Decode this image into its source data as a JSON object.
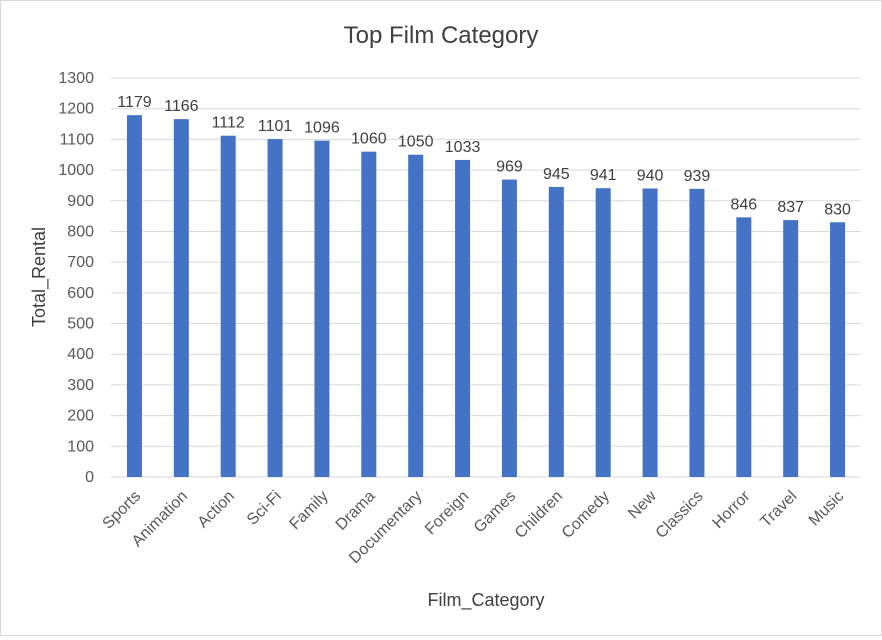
{
  "chart_data": {
    "type": "bar",
    "title": "Top Film Category",
    "xlabel": "Film_Category",
    "ylabel": "Total_Rental",
    "ylim": [
      0,
      1300
    ],
    "ytick_step": 100,
    "grid": true,
    "legend": "none",
    "data_labels": true,
    "bar_color": "#4472c4",
    "categories": [
      "Sports",
      "Animation",
      "Action",
      "Sci-Fi",
      "Family",
      "Drama",
      "Documentary",
      "Foreign",
      "Games",
      "Children",
      "Comedy",
      "New",
      "Classics",
      "Horror",
      "Travel",
      "Music"
    ],
    "values": [
      1179,
      1166,
      1112,
      1101,
      1096,
      1060,
      1050,
      1033,
      969,
      945,
      941,
      940,
      939,
      846,
      837,
      830
    ]
  }
}
